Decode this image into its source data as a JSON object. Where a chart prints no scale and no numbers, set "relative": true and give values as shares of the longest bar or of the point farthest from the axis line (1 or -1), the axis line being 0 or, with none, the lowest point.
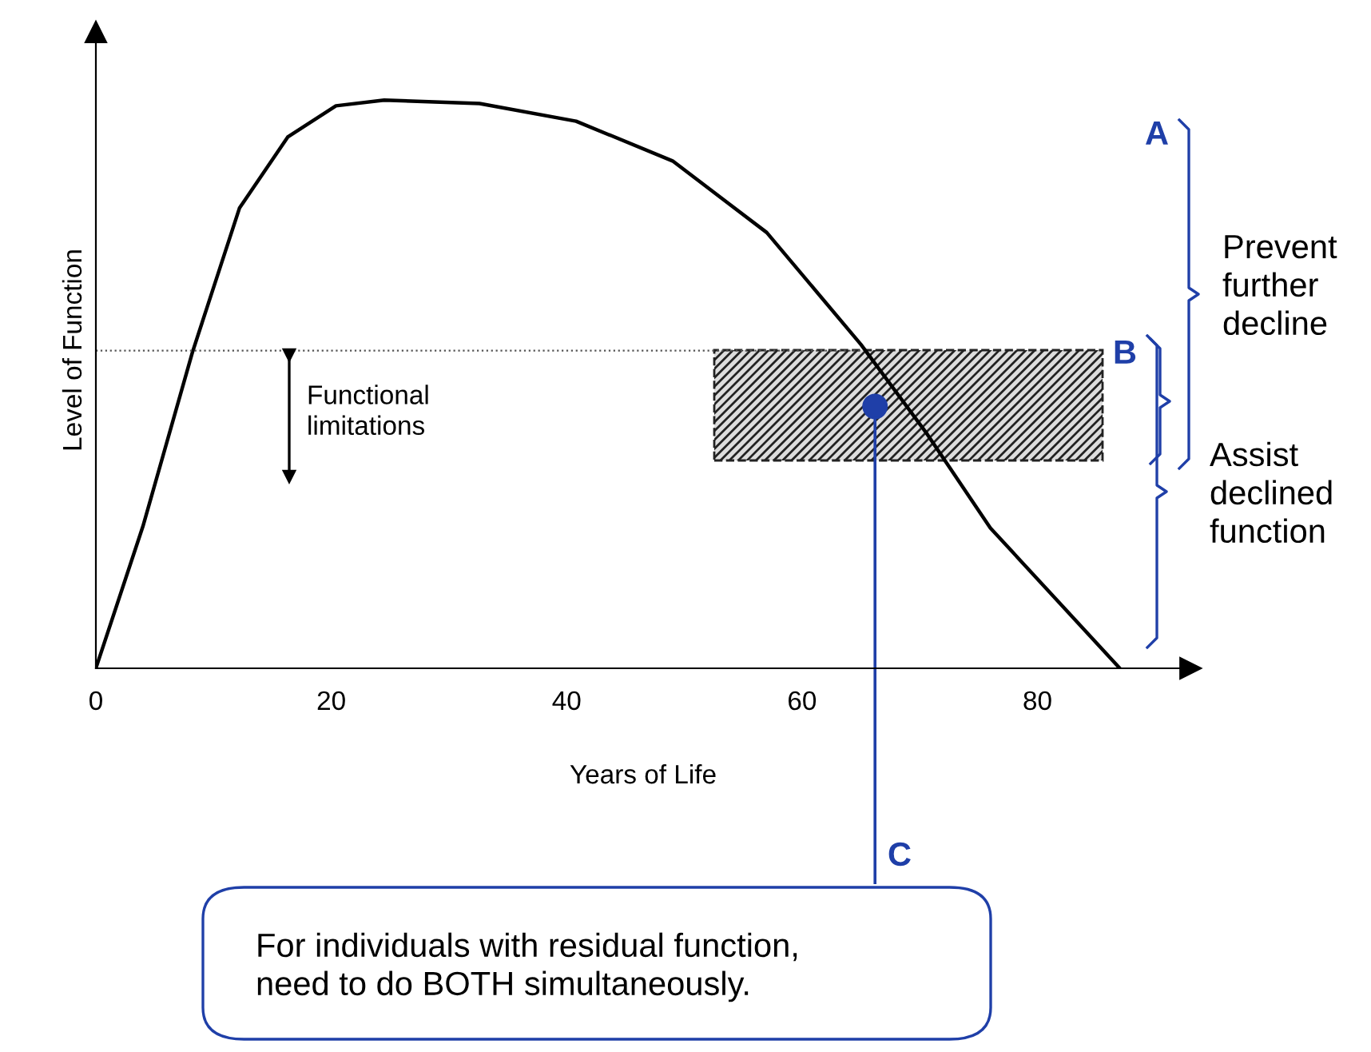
{
  "chart_data": {
    "type": "line",
    "relative": true,
    "xlabel": "Years of Life",
    "ylabel": "Level of Function",
    "xlim": [
      0,
      93
    ],
    "xticks": [
      0,
      20,
      40,
      60,
      80
    ],
    "grid": false,
    "legend": false,
    "series": [
      {
        "color": "#000000",
        "marker": "none",
        "x": [
          0,
          4,
          8.2,
          12.2,
          16.3,
          20.4,
          24.5,
          32.6,
          40.8,
          49,
          57,
          65,
          70.5,
          76,
          87
        ],
        "values": [
          0,
          0.25,
          0.556,
          0.81,
          0.935,
          0.99,
          1,
          0.994,
          0.963,
          0.893,
          0.767,
          0.57,
          0.416,
          0.247,
          0
        ]
      },
      {
        "type": "scatter",
        "color": "#1f3fa8",
        "marker": "circle",
        "x": [
          66.2
        ],
        "values": [
          0.461
        ]
      }
    ],
    "ref_lines": [
      {
        "axis": "y",
        "value": 0.559,
        "color": "#555555",
        "line_style": "dotted"
      },
      {
        "axis": "x",
        "value": 66.2,
        "color": "#1f3fa8",
        "line_style": "solid"
      }
    ],
    "annotations": [
      "Functional\nlimitations",
      "A",
      "B",
      "C",
      "Prevent\nfurther\ndecline",
      "Assist\ndeclined\nfunction",
      "For individuals with residual function,\nneed to do BOTH simultaneously."
    ]
  }
}
